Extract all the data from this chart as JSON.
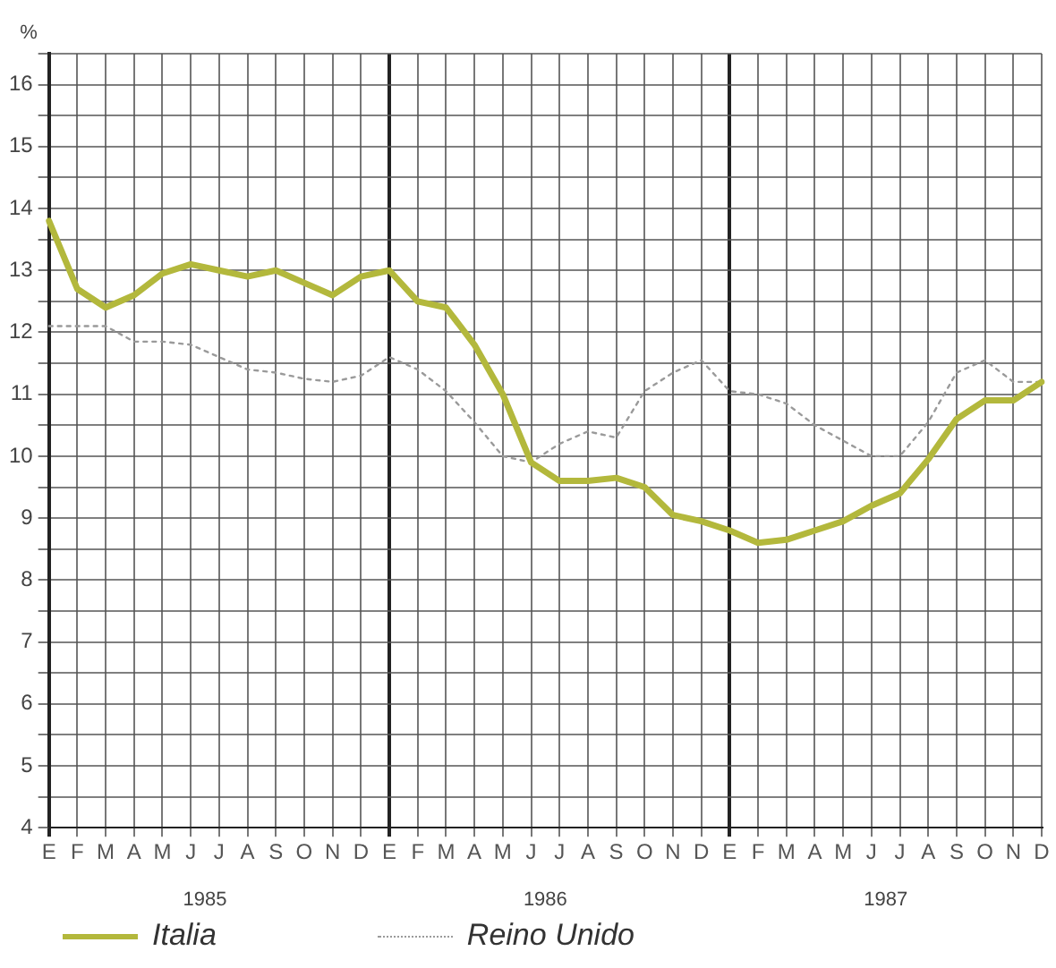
{
  "chart_data": {
    "type": "line",
    "ylabel": "%",
    "categories": [
      "E",
      "F",
      "M",
      "A",
      "M",
      "J",
      "J",
      "A",
      "S",
      "O",
      "N",
      "D",
      "E",
      "F",
      "M",
      "A",
      "M",
      "J",
      "J",
      "A",
      "S",
      "O",
      "N",
      "D",
      "E",
      "F",
      "M",
      "A",
      "M",
      "J",
      "J",
      "A",
      "S",
      "O",
      "N",
      "D"
    ],
    "annotations": [
      "1985",
      "1986",
      "1987"
    ],
    "ylim": [
      4,
      16.5
    ],
    "yticks": [
      4,
      {
        "value": 4.5,
        "label": null
      },
      5,
      {
        "value": 5.5,
        "label": null
      },
      6,
      {
        "value": 6.5,
        "label": null
      },
      7,
      {
        "value": 7.5,
        "label": null
      },
      8,
      {
        "value": 8.5,
        "label": null
      },
      9,
      {
        "value": 9.5,
        "label": null
      },
      10,
      {
        "value": 10.5,
        "label": null
      },
      11,
      {
        "value": 11.5,
        "label": null
      },
      12,
      {
        "value": 12.5,
        "label": null
      },
      13,
      {
        "value": 13.5,
        "label": null
      },
      14,
      {
        "value": 14.5,
        "label": null
      },
      15,
      {
        "value": 15.5,
        "label": null
      },
      16,
      {
        "value": 16.5,
        "label": null
      }
    ],
    "grid": true,
    "legend": "bottom left",
    "series": [
      {
        "name": "Italia",
        "color": "#b3b83c",
        "line_style": "solid",
        "values": [
          13.8,
          12.7,
          12.4,
          12.6,
          12.95,
          13.1,
          13.0,
          12.9,
          13.0,
          12.8,
          12.6,
          12.9,
          13.0,
          12.5,
          12.4,
          11.8,
          11.0,
          9.9,
          9.6,
          9.6,
          9.65,
          9.5,
          9.05,
          8.95,
          8.8,
          8.6,
          8.65,
          8.8,
          8.95,
          9.2,
          9.4,
          9.95,
          10.6,
          10.9,
          10.9,
          11.2
        ]
      },
      {
        "name": "Reino Unido",
        "color": "#9a9a9a",
        "line_style": "dotted",
        "values": [
          12.1,
          12.1,
          12.1,
          11.85,
          11.85,
          11.8,
          11.6,
          11.4,
          11.35,
          11.25,
          11.2,
          11.3,
          11.6,
          11.4,
          11.05,
          10.55,
          10.0,
          9.9,
          10.2,
          10.4,
          10.3,
          11.05,
          11.35,
          11.55,
          11.05,
          11.0,
          10.85,
          10.5,
          10.25,
          10.0,
          10.0,
          10.55,
          11.35,
          11.55,
          11.2,
          11.2
        ]
      }
    ]
  }
}
